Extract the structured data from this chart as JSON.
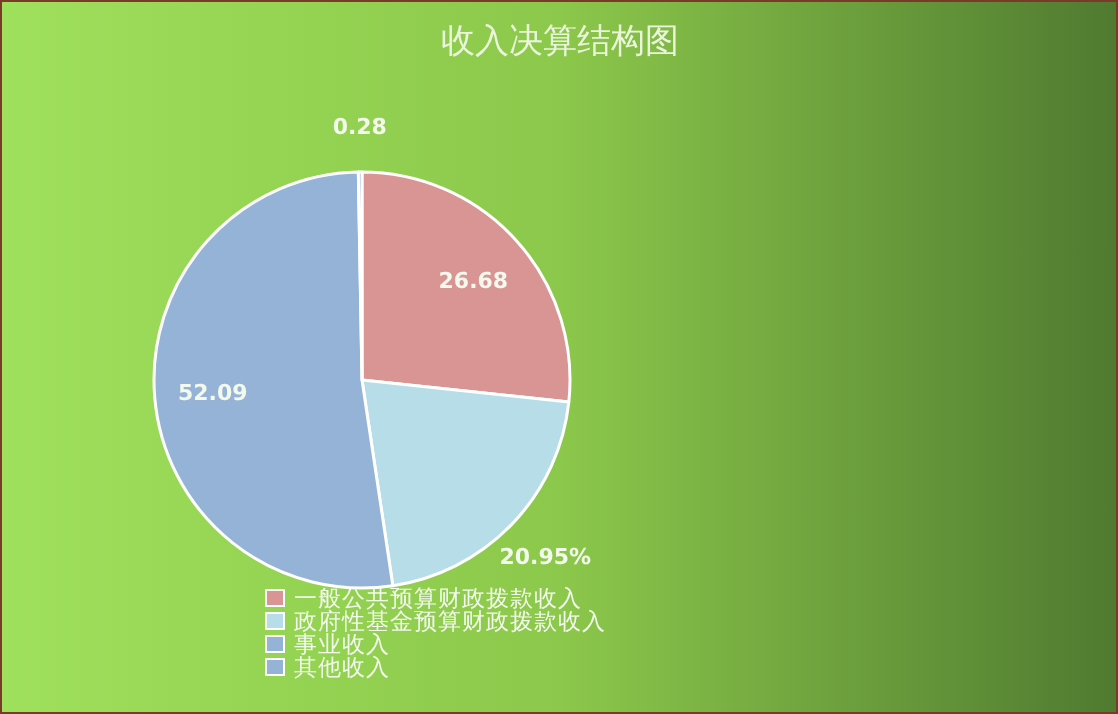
{
  "chart_data": {
    "type": "pie",
    "title": "收入决算结构图",
    "categories": [
      "一般公共预算财政拨款收入",
      "政府性基金预算财政拨款收入",
      "事业收入",
      "其他收入"
    ],
    "values": [
      26.68,
      20.95,
      52.09,
      0.28
    ],
    "value_labels": [
      "26.68",
      "20.95%",
      "52.09",
      "0.28"
    ],
    "colors": [
      "#d99594",
      "#b7dde8",
      "#95b3d7",
      "#95b3d7"
    ],
    "legend": "bottom"
  }
}
